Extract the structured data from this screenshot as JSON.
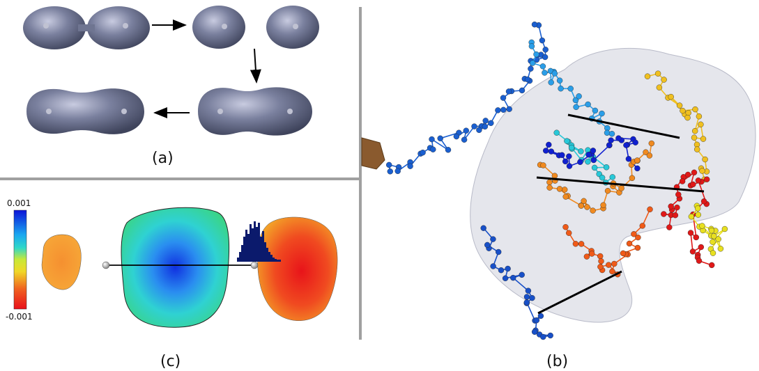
{
  "labels": {
    "a": "(a)",
    "b": "(b)",
    "c": "(c)"
  },
  "colorbar": {
    "max": "0.001",
    "min": "-0.001"
  },
  "colors": {
    "surface": "#6f7591",
    "divider": "#a0a0a0",
    "envelope": "#dcdde6"
  }
}
